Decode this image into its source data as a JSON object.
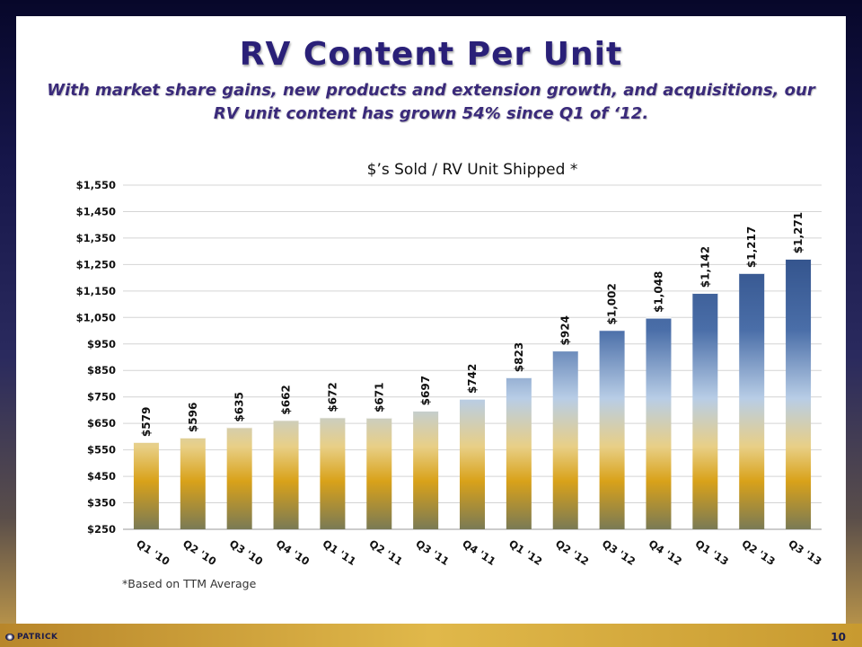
{
  "slide": {
    "title": "RV Content Per Unit",
    "subtitle": "With market share gains, new products and extension growth, and acquisitions, our RV unit content has grown 54% since Q1 of ‘12.",
    "footnote": "*Based on TTM Average",
    "logo_text": "PATRICK",
    "page_number": "10"
  },
  "colors": {
    "title": "#2a2078",
    "bar_top": "#1e3a72",
    "bar_mid": "#b8cde6",
    "bar_gold": "#d9a21a",
    "bar_base": "#7a7a55"
  },
  "chart_data": {
    "type": "bar",
    "title": "$’s Sold / RV Unit Shipped *",
    "xlabel": "",
    "ylabel": "",
    "ylim": [
      250,
      1550
    ],
    "yticks": [
      250,
      350,
      450,
      550,
      650,
      750,
      850,
      950,
      1050,
      1150,
      1250,
      1350,
      1450,
      1550
    ],
    "ytick_labels": [
      "$250",
      "$350",
      "$450",
      "$550",
      "$650",
      "$750",
      "$850",
      "$950",
      "$1,050",
      "$1,150",
      "$1,250",
      "$1,350",
      "$1,450",
      "$1,550"
    ],
    "grid": true,
    "categories": [
      "Q1 '10",
      "Q2 '10",
      "Q3 '10",
      "Q4 '10",
      "Q1 '11",
      "Q2 '11",
      "Q3 '11",
      "Q4 '11",
      "Q1 '12",
      "Q2 '12",
      "Q3 '12",
      "Q4 '12",
      "Q1 '13",
      "Q2 '13",
      "Q3 '13"
    ],
    "values": [
      579,
      596,
      635,
      662,
      672,
      671,
      697,
      742,
      823,
      924,
      1002,
      1048,
      1142,
      1217,
      1271
    ],
    "data_labels": [
      "$579",
      "$596",
      "$635",
      "$662",
      "$672",
      "$671",
      "$697",
      "$742",
      "$823",
      "$924",
      "$1,002",
      "$1,048",
      "$1,142",
      "$1,217",
      "$1,271"
    ]
  }
}
